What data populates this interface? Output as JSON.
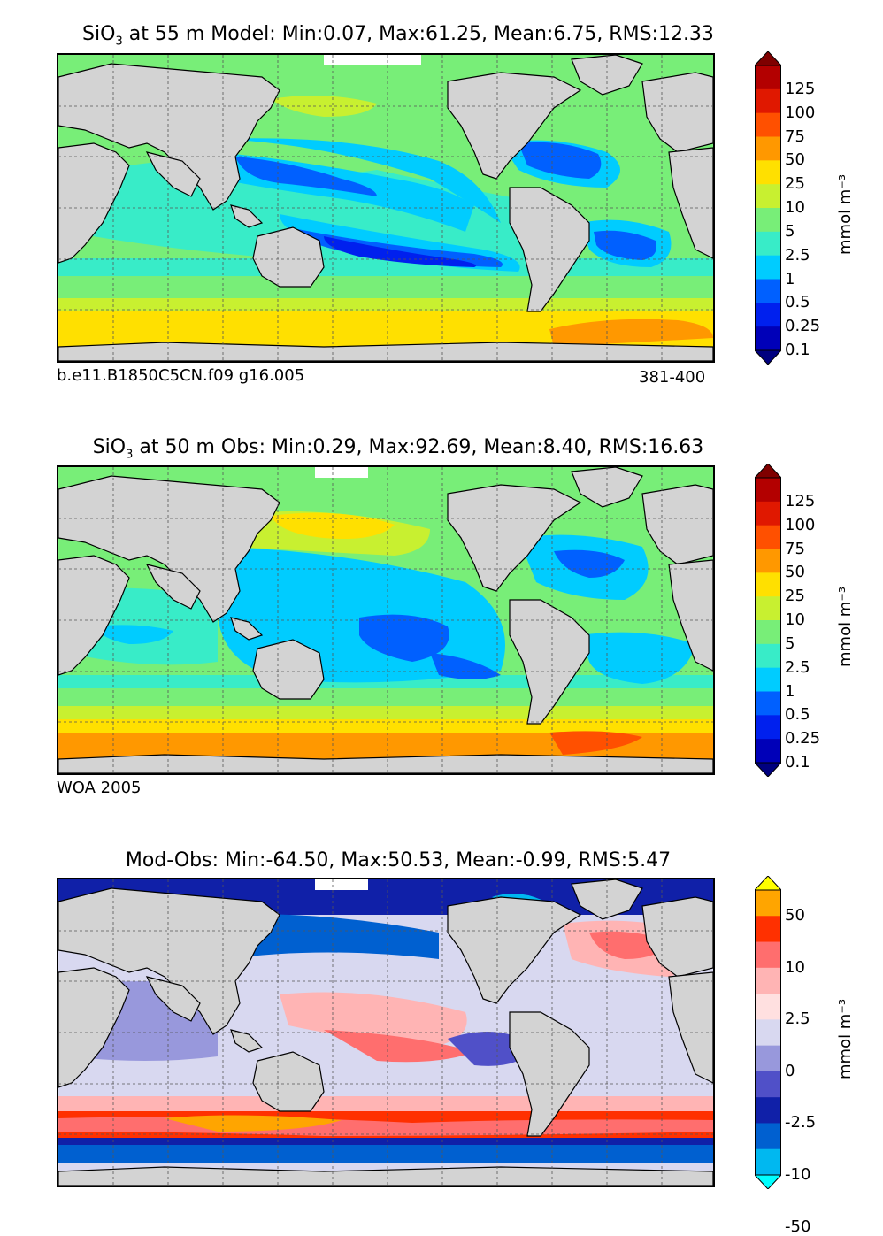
{
  "panels": [
    {
      "id": "model",
      "title_species": "SiO",
      "title_sub": "3",
      "title_rest": " at 55 m Model: Min:0.07, Max:61.25, Mean:6.75, RMS:12.33",
      "note_left": "b.e11.B1850C5CN.f09 g16.005",
      "note_right": "381-400",
      "units": "mmol m⁻³",
      "colorbar": {
        "labels": [
          "125",
          "100",
          "75",
          "50",
          "25",
          "10",
          "5",
          "2.5",
          "1",
          "0.5",
          "0.25",
          "0.1"
        ],
        "colors": [
          "#7f0000",
          "#b30000",
          "#e01800",
          "#ff5000",
          "#ff9800",
          "#ffe000",
          "#c8f030",
          "#78ee78",
          "#38ecc8",
          "#00ccff",
          "#0060ff",
          "#0020ee",
          "#0000b8",
          "#00007f"
        ]
      }
    },
    {
      "id": "obs",
      "title_species": "SiO",
      "title_sub": "3",
      "title_rest": " at 50 m Obs: Min:0.29, Max:92.69, Mean:8.40, RMS:16.63",
      "note_left": "WOA 2005",
      "note_right": "",
      "units": "mmol m⁻³",
      "colorbar": {
        "labels": [
          "125",
          "100",
          "75",
          "50",
          "25",
          "10",
          "5",
          "2.5",
          "1",
          "0.5",
          "0.25",
          "0.1"
        ],
        "colors": [
          "#7f0000",
          "#b30000",
          "#e01800",
          "#ff5000",
          "#ff9800",
          "#ffe000",
          "#c8f030",
          "#78ee78",
          "#38ecc8",
          "#00ccff",
          "#0060ff",
          "#0020ee",
          "#0000b8",
          "#00007f"
        ]
      }
    },
    {
      "id": "diff",
      "title_species": "Mod-Obs",
      "title_sub": "",
      "title_rest": ": Min:-64.50, Max:50.53, Mean:-0.99, RMS:5.47",
      "note_left": "",
      "note_right": "",
      "units": "mmol m⁻³",
      "colorbar": {
        "labels": [
          "50",
          "10",
          "2.5",
          "0",
          "-2.5",
          "-10",
          "-50"
        ],
        "colors": [
          "#ffff00",
          "#ffa500",
          "#ff3000",
          "#ff6e6e",
          "#ffb4b4",
          "#ffe0e0",
          "#d8d8f0",
          "#9898dc",
          "#5050c8",
          "#1020a8",
          "#0060d0",
          "#00b8f0",
          "#00ffff"
        ]
      }
    }
  ],
  "map_colors": {
    "land": "#d3d3d3",
    "ice": "#ffffff"
  }
}
